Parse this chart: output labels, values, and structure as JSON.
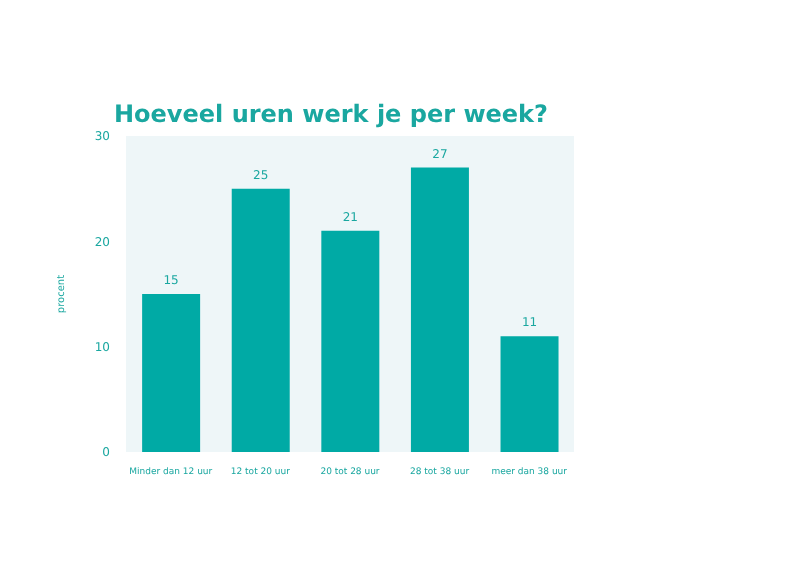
{
  "chart_data": {
    "type": "bar",
    "title": "Hoeveel uren werk je per week?",
    "ylabel": "procent",
    "categories": [
      "Minder dan 12 uur",
      "12 tot 20 uur",
      "20 tot 28 uur",
      "28 tot 38 uur",
      "meer dan 38 uur"
    ],
    "values": [
      15,
      25,
      21,
      27,
      11
    ],
    "color": "#00aaa5",
    "ylim": [
      0,
      30
    ],
    "yticks": [
      0,
      10,
      20,
      30
    ],
    "grid": false,
    "data_labels": true
  }
}
